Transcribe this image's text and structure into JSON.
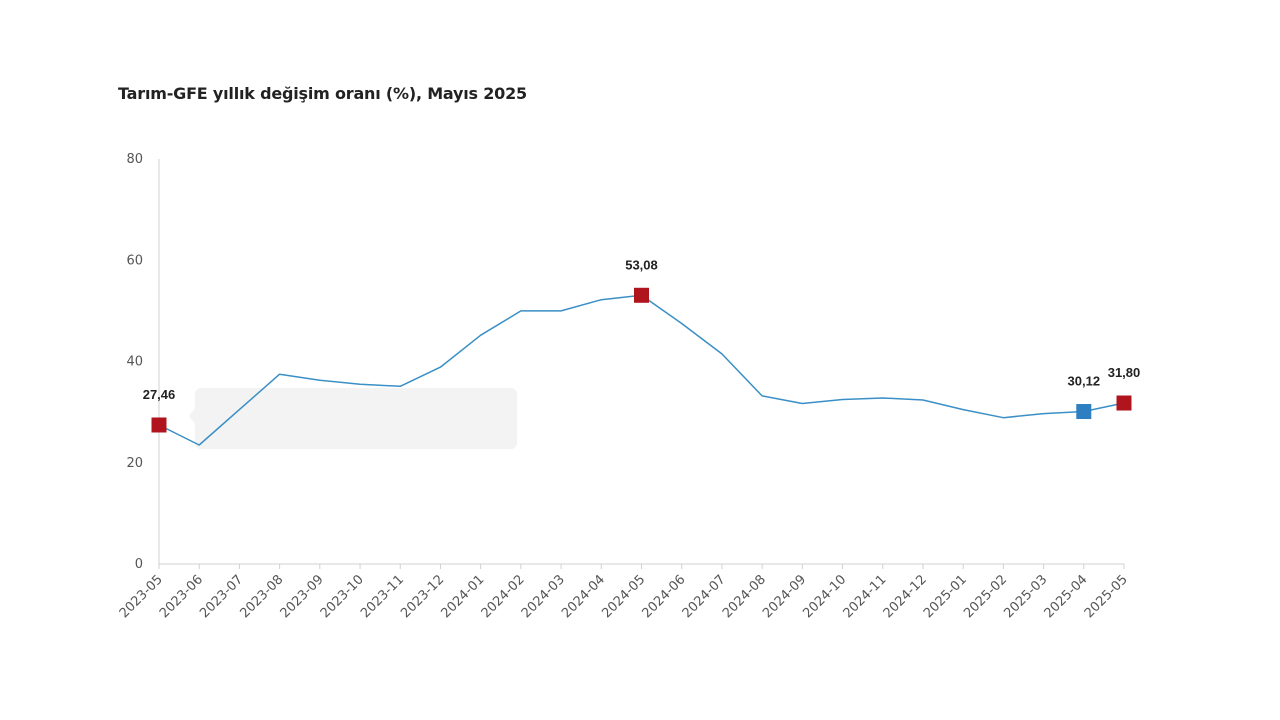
{
  "title": "Tarım-GFE yıllık değişim oranı (%), Mayıs 2025",
  "colors": {
    "line": "#3a8fc6",
    "highlight_red": "#b0141c",
    "highlight_blue": "#2e7fc1",
    "axis": "#d0d0d0",
    "tooltip_bg": "#f3f3f3"
  },
  "chart_data": {
    "type": "line",
    "title": "Tarım-GFE yıllık değişim oranı (%), Mayıs 2025",
    "xlabel": "",
    "ylabel": "",
    "ylim": [
      0,
      80
    ],
    "y_ticks": [
      "0",
      "20",
      "40",
      "60",
      "80"
    ],
    "grid": false,
    "categories": [
      "2023-05",
      "2023-06",
      "2023-07",
      "2023-08",
      "2023-09",
      "2023-10",
      "2023-11",
      "2023-12",
      "2024-01",
      "2024-02",
      "2024-03",
      "2024-04",
      "2024-05",
      "2024-06",
      "2024-07",
      "2024-08",
      "2024-09",
      "2024-10",
      "2024-11",
      "2024-12",
      "2025-01",
      "2025-02",
      "2025-03",
      "2025-04",
      "2025-05"
    ],
    "series": [
      {
        "values": [
          27.46,
          23.5,
          30.5,
          37.5,
          36.3,
          35.5,
          35.1,
          38.9,
          45.2,
          50.0,
          50.0,
          52.2,
          53.08,
          47.5,
          41.5,
          33.2,
          31.7,
          32.5,
          32.8,
          32.4,
          30.5,
          28.9,
          29.7,
          30.12,
          31.8
        ]
      }
    ],
    "highlights": [
      {
        "index": 0,
        "label": "27,46",
        "color": "#b0141c"
      },
      {
        "index": 12,
        "label": "53,08",
        "color": "#b0141c"
      },
      {
        "index": 23,
        "label": "30,12",
        "color": "#2e7fc1"
      },
      {
        "index": 24,
        "label": "31,80",
        "color": "#b0141c"
      }
    ]
  }
}
